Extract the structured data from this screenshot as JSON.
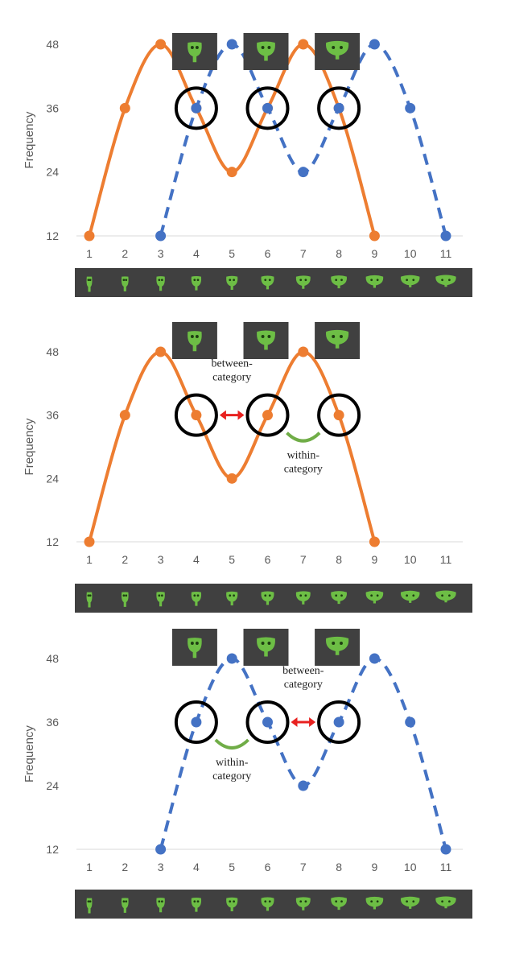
{
  "colors": {
    "orange": "#ED7D31",
    "blue": "#4472C4",
    "grid": "#D9D9D9",
    "tick_text": "#595959",
    "strip_bg": "#404040",
    "leaf_green": "#6DBE45",
    "arrow_red": "#E8211F",
    "arc_green": "#70AD47",
    "circle": "#000000"
  },
  "chart_data": [
    {
      "type": "line",
      "ylabel": "Frequency",
      "xlabel": "",
      "x_ticks": [
        "1",
        "2",
        "3",
        "4",
        "5",
        "6",
        "7",
        "8",
        "9",
        "10",
        "11"
      ],
      "y_ticks": [
        "12",
        "24",
        "36",
        "48"
      ],
      "ylim": [
        12,
        48
      ],
      "xlim": [
        1,
        11
      ],
      "grid": "horizontal baseline only",
      "legend": "none",
      "series": [
        {
          "style": "solid",
          "color": "orange",
          "x": [
            1,
            2,
            3,
            4,
            5,
            6,
            7,
            8,
            9
          ],
          "values": [
            12,
            36,
            48,
            36,
            24,
            36,
            48,
            36,
            12
          ]
        },
        {
          "style": "dashed",
          "color": "blue",
          "x": [
            3,
            4,
            5,
            6,
            7,
            8,
            9,
            10,
            11
          ],
          "values": [
            12,
            36,
            48,
            36,
            24,
            36,
            48,
            36,
            12
          ]
        }
      ],
      "highlight_circles_x": [
        4,
        6,
        8
      ],
      "stimulus_thumbnails_x": [
        4,
        6,
        8
      ],
      "annotations": []
    },
    {
      "type": "line",
      "ylabel": "Frequency",
      "xlabel": "",
      "x_ticks": [
        "1",
        "2",
        "3",
        "4",
        "5",
        "6",
        "7",
        "8",
        "9",
        "10",
        "11"
      ],
      "y_ticks": [
        "12",
        "24",
        "36",
        "48"
      ],
      "ylim": [
        12,
        48
      ],
      "xlim": [
        1,
        11
      ],
      "grid": "horizontal baseline only",
      "legend": "none",
      "series": [
        {
          "style": "solid",
          "color": "orange",
          "x": [
            1,
            2,
            3,
            4,
            5,
            6,
            7,
            8,
            9
          ],
          "values": [
            12,
            36,
            48,
            36,
            24,
            36,
            48,
            36,
            12
          ]
        }
      ],
      "highlight_circles_x": [
        4,
        6,
        8
      ],
      "stimulus_thumbnails_x": [
        4,
        6,
        8
      ],
      "annotations": [
        {
          "kind": "double-arrow",
          "between": [
            4,
            6
          ],
          "lines": [
            "between-",
            "category"
          ]
        },
        {
          "kind": "arc",
          "between": [
            6,
            8
          ],
          "lines": [
            "within-",
            "category"
          ]
        }
      ]
    },
    {
      "type": "line",
      "ylabel": "Frequency",
      "xlabel": "",
      "x_ticks": [
        "1",
        "2",
        "3",
        "4",
        "5",
        "6",
        "7",
        "8",
        "9",
        "10",
        "11"
      ],
      "y_ticks": [
        "12",
        "24",
        "36",
        "48"
      ],
      "ylim": [
        12,
        48
      ],
      "xlim": [
        1,
        11
      ],
      "grid": "horizontal baseline only",
      "legend": "none",
      "series": [
        {
          "style": "dashed",
          "color": "blue",
          "x": [
            3,
            4,
            5,
            6,
            7,
            8,
            9,
            10,
            11
          ],
          "values": [
            12,
            36,
            48,
            36,
            24,
            36,
            48,
            36,
            12
          ]
        }
      ],
      "highlight_circles_x": [
        4,
        6,
        8
      ],
      "stimulus_thumbnails_x": [
        4,
        6,
        8
      ],
      "annotations": [
        {
          "kind": "arc",
          "between": [
            4,
            6
          ],
          "lines": [
            "within-",
            "category"
          ]
        },
        {
          "kind": "double-arrow",
          "between": [
            6,
            8
          ],
          "lines": [
            "between-",
            "category"
          ]
        }
      ]
    }
  ]
}
